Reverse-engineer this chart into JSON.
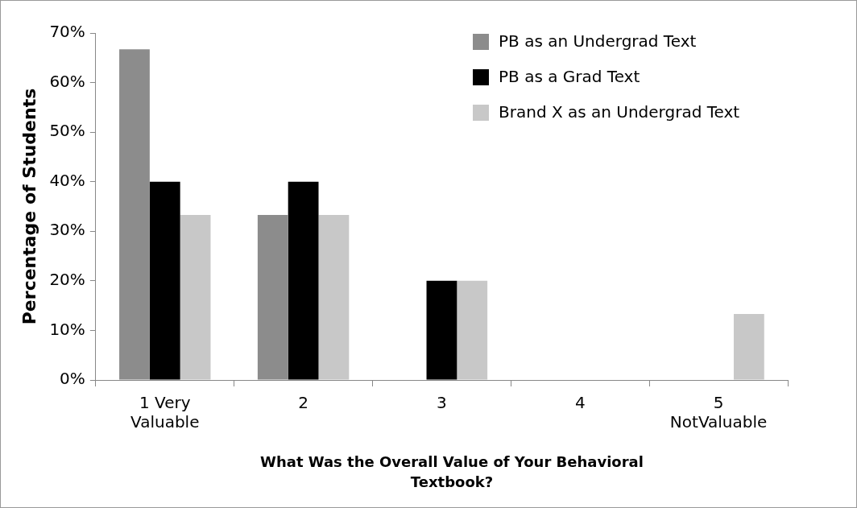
{
  "chart_data": {
    "type": "bar",
    "xlabel": "What Was the Overall Value of Your Behavioral Textbook?",
    "ylabel": "Percentage of Students",
    "categories": [
      "1 Very\nValuable",
      "2",
      "3",
      "4",
      "5\nNotValuable"
    ],
    "series": [
      {
        "name": "PB as an Undergrad Text",
        "color": "#8c8c8c",
        "values": [
          66.7,
          33.3,
          0,
          0,
          0
        ]
      },
      {
        "name": "PB as a Grad Text",
        "color": "#000000",
        "values": [
          40,
          40,
          20,
          0,
          0
        ]
      },
      {
        "name": "Brand X as an Undergrad Text",
        "color": "#c8c8c8",
        "values": [
          33.3,
          33.3,
          20,
          0,
          13.3
        ]
      }
    ],
    "ylim": [
      0,
      70
    ],
    "yticks": [
      {
        "value": 0,
        "label": "0%"
      },
      {
        "value": 10,
        "label": "10%"
      },
      {
        "value": 20,
        "label": "20%"
      },
      {
        "value": 30,
        "label": "30%"
      },
      {
        "value": 40,
        "label": "40%"
      },
      {
        "value": 50,
        "label": "50%"
      },
      {
        "value": 60,
        "label": "60%"
      },
      {
        "value": 70,
        "label": "70%"
      }
    ],
    "grid": false,
    "legend": "top right"
  }
}
